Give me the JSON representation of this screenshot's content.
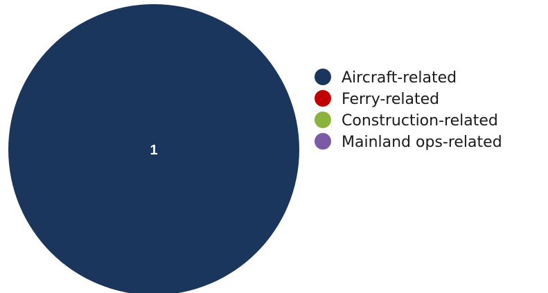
{
  "chart_data": {
    "type": "pie",
    "title": "",
    "categories": [
      "Aircraft-related",
      "Ferry-related",
      "Construction-related",
      "Mainland ops-related"
    ],
    "values": [
      1,
      0,
      0,
      0
    ],
    "data_labels": [
      "1",
      "",
      "",
      ""
    ],
    "colors": [
      "#1b365d",
      "#c00000",
      "#8db33f",
      "#7b5aa6"
    ],
    "legend_position": "right"
  }
}
